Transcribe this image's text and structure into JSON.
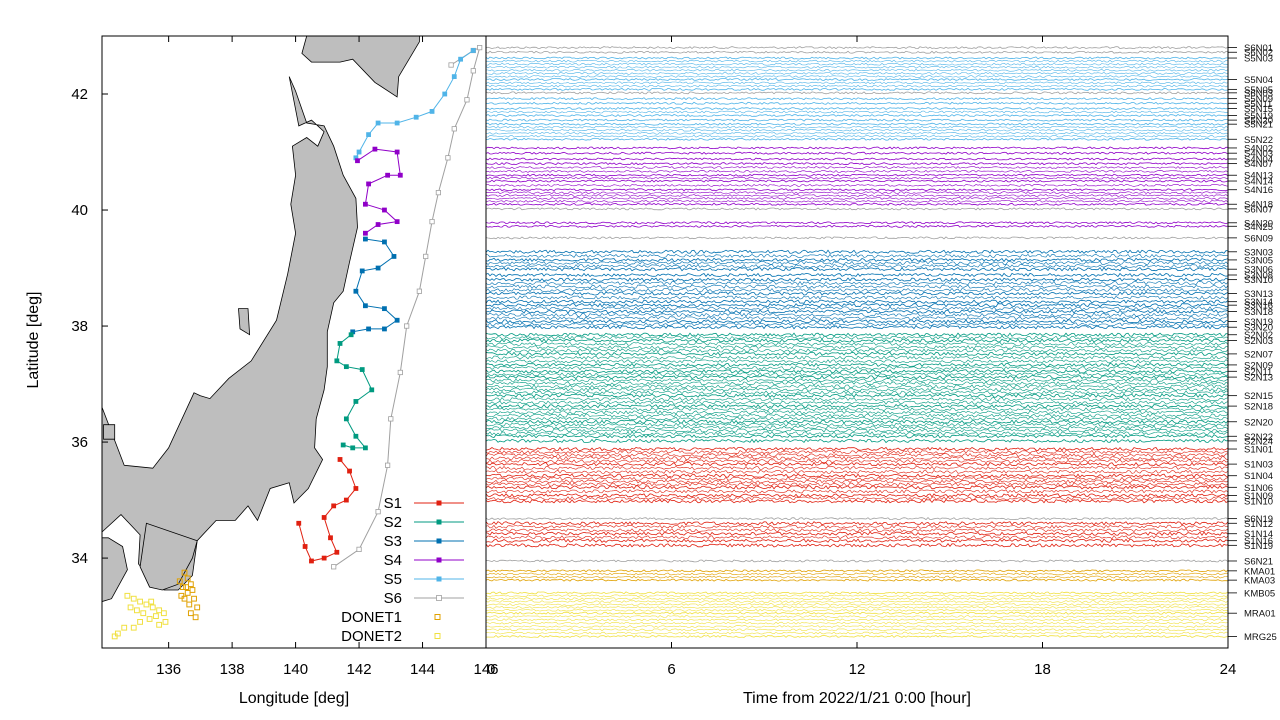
{
  "map_panel": {
    "xlabel": "Longitude [deg]",
    "ylabel": "Latitude [deg]",
    "xlim": [
      133.9,
      146.0
    ],
    "ylim": [
      32.45,
      43.0
    ],
    "xticks": [
      136,
      138,
      140,
      142,
      144,
      146
    ],
    "yticks": [
      34,
      36,
      38,
      40,
      42
    ],
    "land_color": "#bebebe",
    "cable_nodes": {
      "S6": [
        [
          141.2,
          33.85
        ],
        [
          142.0,
          34.15
        ],
        [
          142.6,
          34.8
        ],
        [
          142.9,
          35.6
        ],
        [
          143.0,
          36.4
        ],
        [
          143.3,
          37.2
        ],
        [
          143.5,
          38.0
        ],
        [
          143.9,
          38.6
        ],
        [
          144.1,
          39.2
        ],
        [
          144.3,
          39.8
        ],
        [
          144.5,
          40.3
        ],
        [
          144.8,
          40.9
        ],
        [
          145.0,
          41.4
        ],
        [
          145.4,
          41.9
        ],
        [
          145.6,
          42.4
        ],
        [
          145.8,
          42.8
        ],
        [
          145.6,
          42.75
        ],
        [
          144.9,
          42.5
        ]
      ],
      "S5": [
        [
          145.6,
          42.75
        ],
        [
          145.2,
          42.6
        ],
        [
          145.0,
          42.3
        ],
        [
          144.7,
          42.0
        ],
        [
          144.3,
          41.7
        ],
        [
          143.8,
          41.6
        ],
        [
          143.2,
          41.5
        ],
        [
          142.6,
          41.5
        ],
        [
          142.3,
          41.3
        ],
        [
          142.0,
          41.0
        ],
        [
          141.9,
          40.9
        ]
      ],
      "S4": [
        [
          141.95,
          40.85
        ],
        [
          142.5,
          41.05
        ],
        [
          143.2,
          41.0
        ],
        [
          143.3,
          40.6
        ],
        [
          142.9,
          40.6
        ],
        [
          142.3,
          40.45
        ],
        [
          142.2,
          40.1
        ],
        [
          142.8,
          40.0
        ],
        [
          143.2,
          39.8
        ],
        [
          142.6,
          39.75
        ],
        [
          142.2,
          39.6
        ]
      ],
      "S3": [
        [
          142.2,
          39.5
        ],
        [
          142.8,
          39.45
        ],
        [
          143.1,
          39.2
        ],
        [
          142.6,
          39.0
        ],
        [
          142.1,
          38.95
        ],
        [
          141.9,
          38.6
        ],
        [
          142.2,
          38.35
        ],
        [
          142.8,
          38.3
        ],
        [
          143.2,
          38.1
        ],
        [
          142.8,
          37.95
        ],
        [
          142.3,
          37.95
        ],
        [
          141.8,
          37.9
        ]
      ],
      "S2": [
        [
          141.75,
          37.85
        ],
        [
          141.4,
          37.7
        ],
        [
          141.3,
          37.4
        ],
        [
          141.6,
          37.3
        ],
        [
          142.1,
          37.25
        ],
        [
          142.4,
          36.9
        ],
        [
          141.9,
          36.7
        ],
        [
          141.6,
          36.4
        ],
        [
          141.9,
          36.1
        ],
        [
          142.2,
          35.9
        ],
        [
          141.8,
          35.9
        ],
        [
          141.5,
          35.95
        ]
      ],
      "S1": [
        [
          141.4,
          35.7
        ],
        [
          141.7,
          35.5
        ],
        [
          141.9,
          35.2
        ],
        [
          141.6,
          35.0
        ],
        [
          141.2,
          34.9
        ],
        [
          140.9,
          34.7
        ],
        [
          141.1,
          34.35
        ],
        [
          141.3,
          34.1
        ],
        [
          140.9,
          34.0
        ],
        [
          140.5,
          33.95
        ],
        [
          140.3,
          34.2
        ],
        [
          140.1,
          34.6
        ]
      ]
    }
  },
  "legend": [
    {
      "label": "S1",
      "color": "#e02010",
      "marker": "filled-square"
    },
    {
      "label": "S2",
      "color": "#009a80",
      "marker": "filled-square"
    },
    {
      "label": "S3",
      "color": "#0070b0",
      "marker": "filled-square"
    },
    {
      "label": "S4",
      "color": "#9000c8",
      "marker": "filled-square"
    },
    {
      "label": "S5",
      "color": "#50b4e8",
      "marker": "filled-square"
    },
    {
      "label": "S6",
      "color": "#a0a0a0",
      "marker": "open-square"
    },
    {
      "label": "DONET1",
      "color": "#e0a000",
      "marker": "open-square"
    },
    {
      "label": "DONET2",
      "color": "#f0e040",
      "marker": "open-square"
    }
  ],
  "donet": {
    "DONET1": [
      [
        136.5,
        33.75
      ],
      [
        136.6,
        33.65
      ],
      [
        136.7,
        33.55
      ],
      [
        136.45,
        33.5
      ],
      [
        136.6,
        33.4
      ],
      [
        136.8,
        33.3
      ],
      [
        136.5,
        33.3
      ],
      [
        136.65,
        33.2
      ],
      [
        136.9,
        33.15
      ],
      [
        136.7,
        33.05
      ],
      [
        136.85,
        32.98
      ],
      [
        136.35,
        33.6
      ],
      [
        136.4,
        33.35
      ],
      [
        136.55,
        33.5
      ],
      [
        136.75,
        33.45
      ]
    ],
    "DONET2": [
      [
        134.7,
        33.35
      ],
      [
        134.9,
        33.3
      ],
      [
        135.1,
        33.25
      ],
      [
        135.3,
        33.2
      ],
      [
        134.8,
        33.15
      ],
      [
        135.0,
        33.1
      ],
      [
        135.2,
        33.05
      ],
      [
        135.5,
        33.15
      ],
      [
        135.7,
        33.1
      ],
      [
        135.6,
        33.0
      ],
      [
        135.85,
        33.05
      ],
      [
        135.9,
        32.9
      ],
      [
        135.4,
        32.95
      ],
      [
        135.1,
        32.9
      ],
      [
        134.9,
        32.8
      ],
      [
        134.6,
        32.8
      ],
      [
        134.4,
        32.7
      ],
      [
        134.3,
        32.65
      ],
      [
        135.7,
        32.85
      ],
      [
        135.45,
        33.25
      ]
    ]
  },
  "chart_data": [
    {
      "type": "scatter",
      "title": "",
      "xlabel": "Longitude [deg]",
      "ylabel": "Latitude [deg]",
      "xlim": [
        133.9,
        146.0
      ],
      "ylim": [
        32.45,
        43.0
      ],
      "series": [
        {
          "name": "S1",
          "color": "#e02010"
        },
        {
          "name": "S2",
          "color": "#009a80"
        },
        {
          "name": "S3",
          "color": "#0070b0"
        },
        {
          "name": "S4",
          "color": "#9000c8"
        },
        {
          "name": "S5",
          "color": "#50b4e8"
        },
        {
          "name": "S6",
          "color": "#a0a0a0"
        },
        {
          "name": "DONET1",
          "color": "#e0a000"
        },
        {
          "name": "DONET2",
          "color": "#f0e040"
        }
      ],
      "grid": false,
      "legend_position": "bottom-right"
    },
    {
      "type": "line",
      "title": "",
      "xlabel": "Time from 2022/1/21 0:00 [hour]",
      "ylabel": "",
      "xlim": [
        0,
        24
      ],
      "xticks": [
        0,
        6,
        12,
        18,
        24
      ],
      "ylim": [
        32.45,
        43.0
      ],
      "grid": false,
      "traces": [
        {
          "station": "S6N01",
          "lat": 42.8,
          "color": "#a0a0a0"
        },
        {
          "station": "S6N02",
          "lat": 42.72,
          "color": "#a0a0a0"
        },
        {
          "station": "S5N03",
          "lat": 42.62,
          "color": "#50b4e8"
        },
        {
          "station": "S5N04",
          "lat": 42.25,
          "color": "#50b4e8"
        },
        {
          "station": "S5N05",
          "lat": 42.08,
          "color": "#50b4e8"
        },
        {
          "station": "S6N03",
          "lat": 42.02,
          "color": "#a0a0a0"
        },
        {
          "station": "S5N09",
          "lat": 41.92,
          "color": "#50b4e8"
        },
        {
          "station": "S5N11",
          "lat": 41.84,
          "color": "#50b4e8"
        },
        {
          "station": "S5N15",
          "lat": 41.75,
          "color": "#50b4e8"
        },
        {
          "station": "S5N19",
          "lat": 41.63,
          "color": "#50b4e8"
        },
        {
          "station": "S5N20",
          "lat": 41.55,
          "color": "#50b4e8"
        },
        {
          "station": "S5N21",
          "lat": 41.48,
          "color": "#50b4e8"
        },
        {
          "station": "S5N22",
          "lat": 41.22,
          "color": "#50b4e8"
        },
        {
          "station": "S4N02",
          "lat": 41.07,
          "color": "#9000c8"
        },
        {
          "station": "S4N03",
          "lat": 40.98,
          "color": "#9000c8"
        },
        {
          "station": "S4N04",
          "lat": 40.88,
          "color": "#9000c8"
        },
        {
          "station": "S4N07",
          "lat": 40.8,
          "color": "#9000c8"
        },
        {
          "station": "S4N13",
          "lat": 40.6,
          "color": "#9000c8"
        },
        {
          "station": "S4N14",
          "lat": 40.5,
          "color": "#9000c8"
        },
        {
          "station": "S4N16",
          "lat": 40.35,
          "color": "#9000c8"
        },
        {
          "station": "S4N18",
          "lat": 40.1,
          "color": "#9000c8"
        },
        {
          "station": "S6N07",
          "lat": 40.02,
          "color": "#a0a0a0"
        },
        {
          "station": "S4N20",
          "lat": 39.78,
          "color": "#9000c8"
        },
        {
          "station": "S4N25",
          "lat": 39.72,
          "color": "#9000c8"
        },
        {
          "station": "S6N09",
          "lat": 39.52,
          "color": "#a0a0a0"
        },
        {
          "station": "S3N03",
          "lat": 39.28,
          "color": "#0070b0"
        },
        {
          "station": "S3N05",
          "lat": 39.14,
          "color": "#0070b0"
        },
        {
          "station": "S3N06",
          "lat": 38.98,
          "color": "#0070b0"
        },
        {
          "station": "S3N08",
          "lat": 38.88,
          "color": "#0070b0"
        },
        {
          "station": "S3N10",
          "lat": 38.8,
          "color": "#0070b0"
        },
        {
          "station": "S3N13",
          "lat": 38.56,
          "color": "#0070b0"
        },
        {
          "station": "S3N14",
          "lat": 38.42,
          "color": "#0070b0"
        },
        {
          "station": "S3N16",
          "lat": 38.36,
          "color": "#0070b0"
        },
        {
          "station": "S3N18",
          "lat": 38.25,
          "color": "#0070b0"
        },
        {
          "station": "S3N19",
          "lat": 38.08,
          "color": "#0070b0"
        },
        {
          "station": "S3N20",
          "lat": 37.98,
          "color": "#0070b0"
        },
        {
          "station": "S2N02",
          "lat": 37.85,
          "color": "#009a80"
        },
        {
          "station": "S2N03",
          "lat": 37.75,
          "color": "#009a80"
        },
        {
          "station": "S2N07",
          "lat": 37.52,
          "color": "#009a80"
        },
        {
          "station": "S2N09",
          "lat": 37.33,
          "color": "#009a80"
        },
        {
          "station": "S2N11",
          "lat": 37.22,
          "color": "#009a80"
        },
        {
          "station": "S2N13",
          "lat": 37.12,
          "color": "#009a80"
        },
        {
          "station": "S2N15",
          "lat": 36.8,
          "color": "#009a80"
        },
        {
          "station": "S2N18",
          "lat": 36.62,
          "color": "#009a80"
        },
        {
          "station": "S2N20",
          "lat": 36.35,
          "color": "#009a80"
        },
        {
          "station": "S2N22",
          "lat": 36.1,
          "color": "#009a80"
        },
        {
          "station": "S2N24",
          "lat": 36.02,
          "color": "#009a80"
        },
        {
          "station": "S1N01",
          "lat": 35.88,
          "color": "#e02010"
        },
        {
          "station": "S1N03",
          "lat": 35.62,
          "color": "#e02010"
        },
        {
          "station": "S1N04",
          "lat": 35.42,
          "color": "#e02010"
        },
        {
          "station": "S1N06",
          "lat": 35.22,
          "color": "#e02010"
        },
        {
          "station": "S1N09",
          "lat": 35.08,
          "color": "#e02010"
        },
        {
          "station": "S1N10",
          "lat": 34.98,
          "color": "#e02010"
        },
        {
          "station": "S6N19",
          "lat": 34.68,
          "color": "#a0a0a0"
        },
        {
          "station": "S1N12",
          "lat": 34.6,
          "color": "#e02010"
        },
        {
          "station": "S1N14",
          "lat": 34.42,
          "color": "#e02010"
        },
        {
          "station": "S1N16",
          "lat": 34.3,
          "color": "#e02010"
        },
        {
          "station": "S1N19",
          "lat": 34.22,
          "color": "#e02010"
        },
        {
          "station": "S6N21",
          "lat": 33.95,
          "color": "#a0a0a0"
        },
        {
          "station": "KMA01",
          "lat": 33.78,
          "color": "#e0a000"
        },
        {
          "station": "KMA03",
          "lat": 33.62,
          "color": "#e0a000"
        },
        {
          "station": "KMB05",
          "lat": 33.4,
          "color": "#f0e040"
        },
        {
          "station": "MRA01",
          "lat": 33.05,
          "color": "#f0e040"
        },
        {
          "station": "MRG25",
          "lat": 32.65,
          "color": "#f0e040"
        }
      ]
    }
  ],
  "station_labels": [
    "S6N01",
    "S6N02",
    "S5N03",
    "S5N04",
    "S5N05",
    "S6N03",
    "S5N09",
    "S5N11",
    "S5N15",
    "S5N19",
    "S5N20",
    "S5N21",
    "S5N22",
    "S4N02",
    "S4N03",
    "S4N04",
    "S4N07",
    "S4N13",
    "S4N14",
    "S4N16",
    "S4N18",
    "S6N07",
    "S4N20",
    "S4N25",
    "S6N09",
    "S3N03",
    "S3N05",
    "S3N06",
    "S3N08",
    "S3N10",
    "S3N13",
    "S3N14",
    "S3N16",
    "S3N18",
    "S3N19",
    "S3N20",
    "S2N02",
    "S2N03",
    "S2N07",
    "S2N09",
    "S2N11",
    "S2N13",
    "S2N15",
    "S2N18",
    "S2N20",
    "S2N22",
    "S2N24",
    "S1N01",
    "S1N03",
    "S1N04",
    "S1N06",
    "S1N09",
    "S1N10",
    "S6N19",
    "S1N12",
    "S1N14",
    "S1N16",
    "S1N19",
    "S6N21",
    "KMA01",
    "KMA03",
    "KMB05",
    "MRA01",
    "MRG25"
  ]
}
